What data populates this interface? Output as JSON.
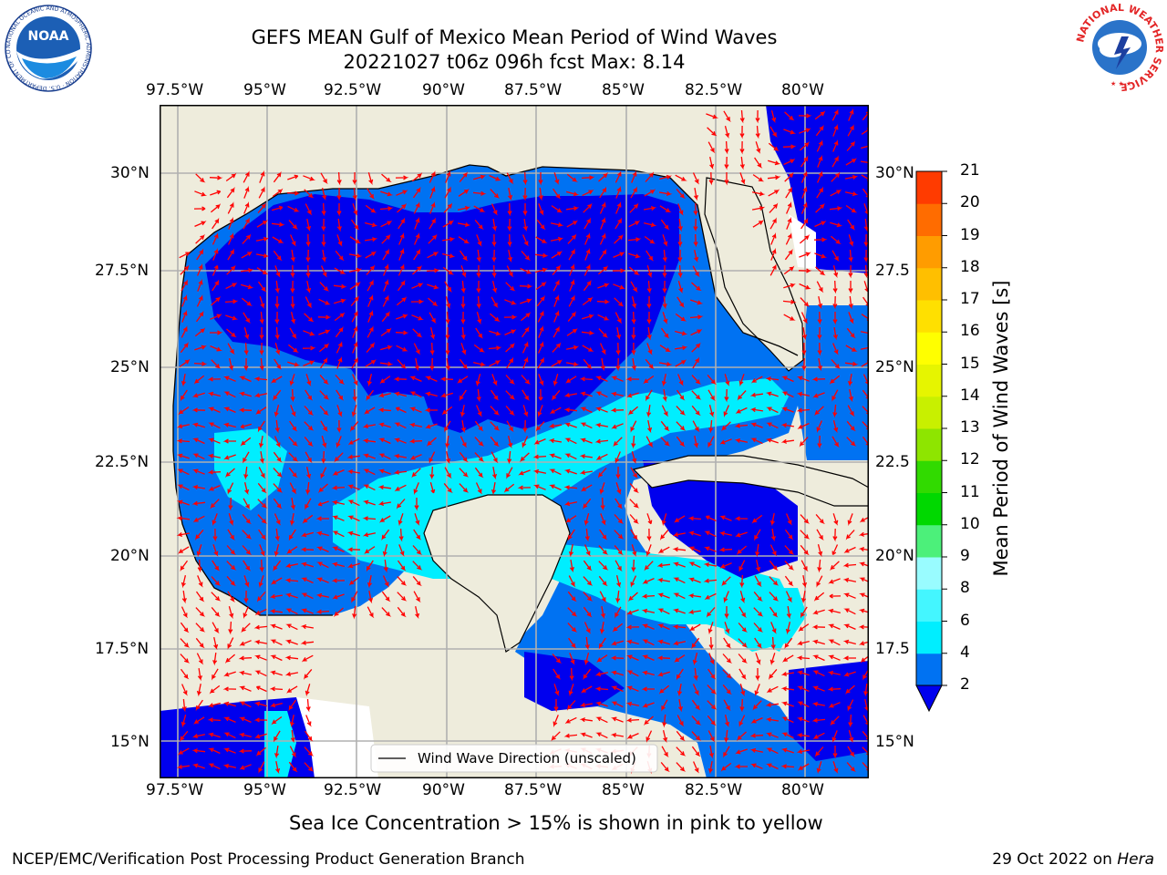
{
  "title": {
    "line1": "GEFS MEAN Gulf of Mexico Mean Period of Wind Waves",
    "line2": "20221027 t06z 096h fcst   Max: 8.14"
  },
  "map": {
    "lon_ticks": [
      "97.5°W",
      "95°W",
      "92.5°W",
      "90°W",
      "87.5°W",
      "85°W",
      "82.5°W",
      "80°W"
    ],
    "lat_ticks_left": [
      "30°N",
      "27.5°N",
      "25°N",
      "22.5°N",
      "20°N",
      "17.5°N",
      "15°N"
    ],
    "lat_ticks_right": [
      "30°N",
      "27.5",
      "25°N",
      "22.5",
      "20°N",
      "17.5",
      "15°N"
    ],
    "legend_label": "Wind Wave Direction (unscaled)",
    "land_color": "#eeecdc",
    "arrow_color": "#ff0000"
  },
  "colorbar": {
    "label": "Mean Period of Wind Waves [s]",
    "ticks": [
      "2",
      "4",
      "6",
      "8",
      "9",
      "10",
      "11",
      "12",
      "13",
      "14",
      "15",
      "16",
      "17",
      "18",
      "19",
      "20",
      "21"
    ],
    "colors": [
      "#0072f2",
      "#00eeff",
      "#44f6ff",
      "#99fcff",
      "#4cf07a",
      "#00d800",
      "#31da00",
      "#8ee500",
      "#c8f000",
      "#e6f500",
      "#ffff00",
      "#ffe000",
      "#ffbf00",
      "#ff9c00",
      "#ff6c00",
      "#ff3b00",
      "#ff0000"
    ],
    "extend_color": "#0000ee"
  },
  "subtitle": "Sea Ice Concentration > 15% is shown in pink to yellow",
  "footer": {
    "left": "NCEP/EMC/Verification Post Processing Product Generation Branch",
    "date": "29 Oct 2022 on ",
    "machine": "Hera"
  },
  "logos": {
    "noaa_text": "NOAA",
    "noaa_ring": "NATIONAL OCEANIC AND ATMOSPHERIC ADMINISTRATION · U.S. DEPARTMENT OF COMMERCE",
    "nws_ring": "NATIONAL WEATHER SERVICE"
  }
}
